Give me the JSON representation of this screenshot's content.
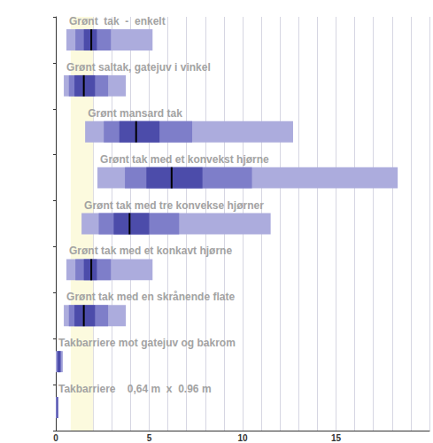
{
  "chart_data": {
    "type": "range_bar",
    "orientation": "horizontal",
    "xlim": [
      0,
      20
    ],
    "xticks": [
      0,
      5,
      10,
      15
    ],
    "tick_labels": "x",
    "grid": true,
    "colors": [
      "#acacdd",
      "#7e7ec9",
      "#4c4caa"
    ],
    "median_color": "#000000",
    "reference_band": [
      0.8,
      2.0
    ],
    "rows": [
      {
        "label": "Grønt  tak  -  enkelt",
        "ranges": [
          [
            0.57,
            5.18
          ],
          [
            1.05,
            2.95
          ],
          [
            1.5,
            2.2
          ]
        ],
        "median": 1.9
      },
      {
        "label": "Grønt saltak, gatejuv i vinkel",
        "ranges": [
          [
            0.43,
            3.75
          ],
          [
            0.7,
            2.8
          ],
          [
            1.0,
            2.1
          ]
        ],
        "median": 1.5
      },
      {
        "label": "Grønt mansard tak",
        "ranges": [
          [
            1.57,
            12.7
          ],
          [
            2.57,
            7.3
          ],
          [
            3.4,
            5.55
          ]
        ],
        "median": 4.3
      },
      {
        "label": "Grønt tak med et konvekst hjørne",
        "ranges": [
          [
            2.23,
            18.3
          ],
          [
            3.7,
            10.5
          ],
          [
            4.85,
            7.85
          ]
        ],
        "median": 6.2
      },
      {
        "label": "Grønt tak med tre konvekse hjørner",
        "ranges": [
          [
            1.38,
            11.5
          ],
          [
            2.3,
            6.6
          ],
          [
            3.1,
            5.0
          ]
        ],
        "median": 3.95
      },
      {
        "label": "Grønt tak med et konkavt hjørne",
        "ranges": [
          [
            0.57,
            5.18
          ],
          [
            1.05,
            2.95
          ],
          [
            1.5,
            2.2
          ]
        ],
        "median": 1.9
      },
      {
        "label": "Grønt tak med en skrånende flate",
        "ranges": [
          [
            0.43,
            3.75
          ],
          [
            0.7,
            2.8
          ],
          [
            1.0,
            2.1
          ]
        ],
        "median": 1.5
      },
      {
        "label": "Takbarriere mot gatejuv og bakrom",
        "ranges": [
          [
            0,
            0.38
          ],
          [
            0.05,
            0.3
          ],
          [
            0.1,
            0.25
          ]
        ],
        "median": null
      },
      {
        "label": "Takbarriere    0,64 m  x  0.96 m",
        "ranges": [
          [
            0,
            0.15
          ],
          [
            0.02,
            0.12
          ],
          [
            0.04,
            0.1
          ]
        ],
        "median": null
      }
    ]
  }
}
